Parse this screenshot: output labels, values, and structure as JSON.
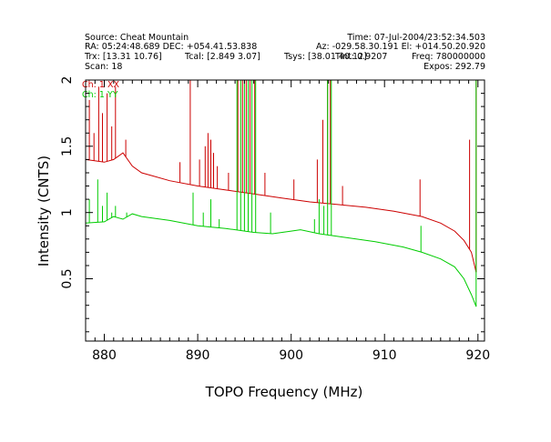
{
  "header": {
    "line1_left": "Source: Cheat Mountain",
    "line1_right": "Time: 07-Jul-2004/23:52:34.503",
    "line2_left": "RA: 05:24:48.689 DEC: +054.41.53.838",
    "line2_right": "Az: -029.58.30.191 El: +014.50.20.920",
    "line3_a": "Trx: [13.31 10.76]",
    "line3_b": "Tcal: [2.849 3.07]",
    "line3_c": "Tsys: [38.01 40.12]",
    "line3_d": "Tint: 0.9207",
    "line3_e": "Freq: 780000000",
    "line4_left": "Scan: 18",
    "line4_right": "Expos: 292.79"
  },
  "colors": {
    "xx": "#cc0000",
    "yy": "#00cc00",
    "axis": "#000000"
  },
  "chart_data": {
    "type": "line",
    "xlabel": "TOPO Frequency (MHz)",
    "ylabel": "Intensity (CNTS)",
    "xlim": [
      878,
      920.7
    ],
    "ylim": [
      0.03,
      2
    ],
    "xticks": [
      880,
      890,
      900,
      910,
      920
    ],
    "yticks": [
      0.5,
      1,
      1.5,
      2
    ],
    "ytick_labels": [
      "0.5",
      "1",
      "1.5",
      "2"
    ],
    "legend_position": "top-left",
    "series": [
      {
        "name": "Ch: 1 XX",
        "color": "#cc0000",
        "baseline": [
          [
            878,
            1.4
          ],
          [
            880,
            1.38
          ],
          [
            881,
            1.4
          ],
          [
            882,
            1.45
          ],
          [
            883,
            1.35
          ],
          [
            884,
            1.3
          ],
          [
            885,
            1.28
          ],
          [
            887,
            1.24
          ],
          [
            890,
            1.2
          ],
          [
            893,
            1.17
          ],
          [
            896,
            1.14
          ],
          [
            899,
            1.11
          ],
          [
            902,
            1.08
          ],
          [
            905,
            1.06
          ],
          [
            908,
            1.04
          ],
          [
            911,
            1.01
          ],
          [
            914,
            0.97
          ],
          [
            916,
            0.92
          ],
          [
            917.5,
            0.86
          ],
          [
            918.5,
            0.79
          ],
          [
            919.3,
            0.7
          ],
          [
            919.8,
            0.55
          ]
        ],
        "spikes": [
          [
            878.4,
            1.85
          ],
          [
            878.9,
            1.6
          ],
          [
            879.4,
            1.95
          ],
          [
            879.8,
            1.75
          ],
          [
            880.3,
            1.9
          ],
          [
            880.8,
            1.65
          ],
          [
            881.2,
            1.95
          ],
          [
            882.3,
            1.55
          ],
          [
            888.1,
            1.38
          ],
          [
            889.2,
            2.0
          ],
          [
            890.2,
            1.4
          ],
          [
            890.8,
            1.5
          ],
          [
            891.1,
            1.6
          ],
          [
            891.4,
            1.55
          ],
          [
            891.7,
            1.45
          ],
          [
            892.1,
            1.35
          ],
          [
            893.3,
            1.3
          ],
          [
            894.3,
            2.0
          ],
          [
            894.8,
            2.0
          ],
          [
            895.2,
            2.0
          ],
          [
            895.6,
            2.0
          ],
          [
            896.1,
            2.0
          ],
          [
            897.2,
            1.3
          ],
          [
            900.3,
            1.25
          ],
          [
            902.8,
            1.4
          ],
          [
            903.4,
            1.7
          ],
          [
            903.9,
            2.0
          ],
          [
            904.2,
            2.0
          ],
          [
            905.5,
            1.2
          ],
          [
            913.8,
            1.25
          ],
          [
            919.1,
            1.55
          ],
          [
            919.8,
            2.0
          ]
        ]
      },
      {
        "name": "Ch: 1 YY",
        "color": "#00cc00",
        "baseline": [
          [
            878,
            0.92
          ],
          [
            880,
            0.93
          ],
          [
            881,
            0.97
          ],
          [
            882,
            0.95
          ],
          [
            883,
            0.99
          ],
          [
            884,
            0.97
          ],
          [
            887,
            0.94
          ],
          [
            890,
            0.9
          ],
          [
            893,
            0.88
          ],
          [
            896,
            0.85
          ],
          [
            898,
            0.84
          ],
          [
            900,
            0.86
          ],
          [
            901,
            0.87
          ],
          [
            903,
            0.84
          ],
          [
            906,
            0.81
          ],
          [
            909,
            0.78
          ],
          [
            912,
            0.74
          ],
          [
            914,
            0.7
          ],
          [
            916,
            0.65
          ],
          [
            917.5,
            0.59
          ],
          [
            918.5,
            0.5
          ],
          [
            919.3,
            0.38
          ],
          [
            919.8,
            0.29
          ]
        ],
        "spikes": [
          [
            878.4,
            1.1
          ],
          [
            879.3,
            1.25
          ],
          [
            879.8,
            1.05
          ],
          [
            880.3,
            1.15
          ],
          [
            880.8,
            1.0
          ],
          [
            881.2,
            1.05
          ],
          [
            882.4,
            1.0
          ],
          [
            889.5,
            1.15
          ],
          [
            890.6,
            1.0
          ],
          [
            891.4,
            1.1
          ],
          [
            892.3,
            0.95
          ],
          [
            894.2,
            2.0
          ],
          [
            894.6,
            2.0
          ],
          [
            895.0,
            2.0
          ],
          [
            895.4,
            2.0
          ],
          [
            895.8,
            2.0
          ],
          [
            896.2,
            2.0
          ],
          [
            897.8,
            1.0
          ],
          [
            902.5,
            0.95
          ],
          [
            903.0,
            1.1
          ],
          [
            903.5,
            1.05
          ],
          [
            903.9,
            2.0
          ],
          [
            904.3,
            2.0
          ],
          [
            913.9,
            0.9
          ],
          [
            919.8,
            2.0
          ]
        ]
      }
    ]
  }
}
